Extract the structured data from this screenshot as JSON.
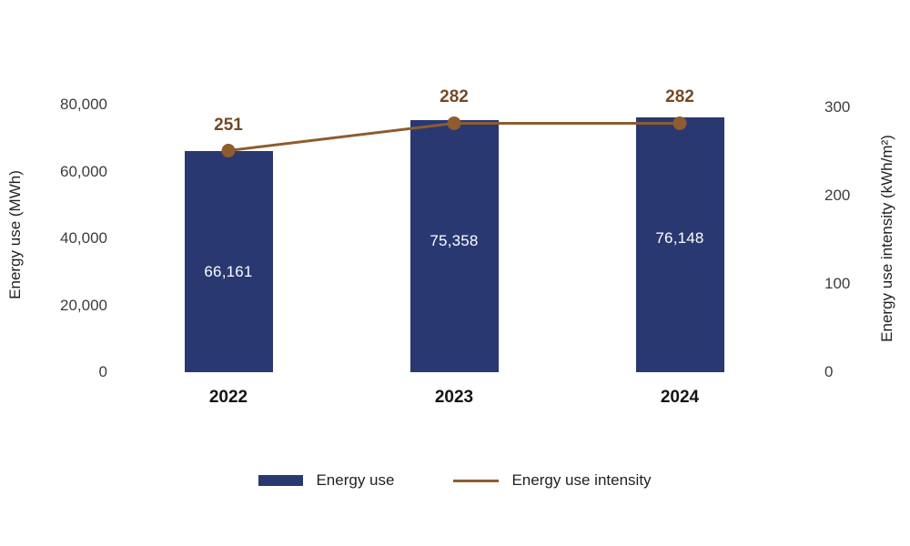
{
  "chart_data": {
    "type": "bar",
    "subtype": "bar+line combo",
    "categories": [
      "2022",
      "2023",
      "2024"
    ],
    "series": [
      {
        "name": "Energy use",
        "type": "bar",
        "axis": "left",
        "values": [
          66161,
          75358,
          76148
        ],
        "labels": [
          "66,161",
          "75,358",
          "76,148"
        ],
        "color": "#2A3872",
        "value_label_color": "#FFFFFF"
      },
      {
        "name": "Energy use intensity",
        "type": "line",
        "axis": "right",
        "values": [
          251,
          282,
          282
        ],
        "labels": [
          "251",
          "282",
          "282"
        ],
        "color": "#8E5C2E",
        "label_color": "#744A24"
      }
    ],
    "left_axis": {
      "title": "Energy use (MWh)",
      "range": [
        0,
        80000
      ],
      "ticks": [
        {
          "value": 0,
          "label": "0"
        },
        {
          "value": 20000,
          "label": "20,000"
        },
        {
          "value": 40000,
          "label": "40,000"
        },
        {
          "value": 60000,
          "label": "60,000"
        },
        {
          "value": 80000,
          "label": "80,000"
        }
      ]
    },
    "right_axis": {
      "title": "Energy use intensity (kWh/m²)",
      "range": [
        0,
        300
      ],
      "ticks": [
        {
          "value": 0,
          "label": "0"
        },
        {
          "value": 100,
          "label": "100"
        },
        {
          "value": 200,
          "label": "200"
        },
        {
          "value": 300,
          "label": "300"
        }
      ]
    },
    "legend": [
      {
        "label": "Energy use",
        "swatch": "bar"
      },
      {
        "label": "Energy use intensity",
        "swatch": "line"
      }
    ],
    "title": "",
    "grid": false,
    "legend_position": "bottom-center"
  }
}
